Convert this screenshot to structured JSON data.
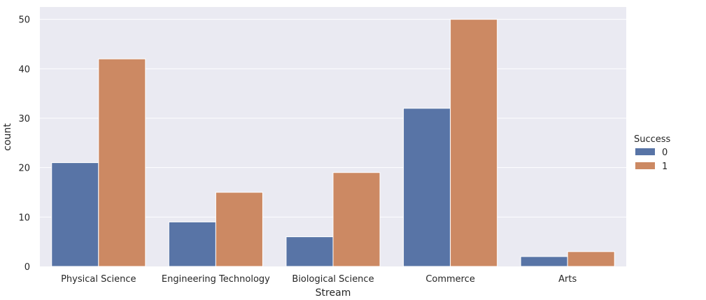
{
  "chart_data": {
    "type": "bar",
    "title": "",
    "xlabel": "Stream",
    "ylabel": "count",
    "categories": [
      "Physical Science",
      "Engineering Technology",
      "Biological Science",
      "Commerce",
      "Arts"
    ],
    "series": [
      {
        "name": "0",
        "values": [
          21,
          9,
          6,
          32,
          2
        ],
        "color": "#5874a6"
      },
      {
        "name": "1",
        "values": [
          42,
          15,
          19,
          50,
          3
        ],
        "color": "#cc8963"
      }
    ],
    "ylim": [
      0,
      52.5
    ],
    "yticks": [
      0,
      10,
      20,
      30,
      40,
      50
    ],
    "grid": true,
    "legend": {
      "title": "Success",
      "placement": "right"
    },
    "background": "#eaeaf2"
  }
}
